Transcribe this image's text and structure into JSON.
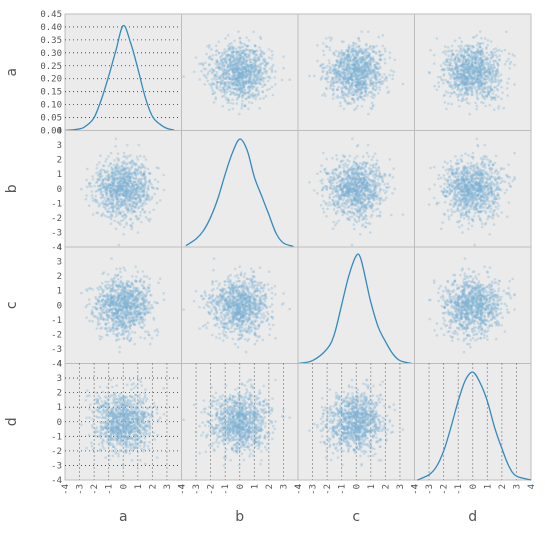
{
  "chart_data": {
    "type": "scatter",
    "subtype": "scatter-matrix",
    "variables": [
      "a",
      "b",
      "c",
      "d"
    ],
    "diagonal": "kde",
    "grid": true,
    "axis_ticks": {
      "a": {
        "range": [
          -4,
          4
        ],
        "x_ticks": [
          "-4",
          "-3",
          "-2",
          "-1",
          "0",
          "1",
          "2",
          "3",
          "4"
        ],
        "density_ticks": [
          "0.00",
          "0.05",
          "0.10",
          "0.15",
          "0.20",
          "0.25",
          "0.30",
          "0.35",
          "0.40",
          "0.45"
        ]
      },
      "b": {
        "range": [
          -4,
          4
        ],
        "ticks": [
          "-4",
          "-3",
          "-2",
          "-1",
          "0",
          "1",
          "2",
          "3",
          "4"
        ]
      },
      "c": {
        "range": [
          -4,
          4
        ],
        "ticks": [
          "-4",
          "-3",
          "-2",
          "-1",
          "0",
          "1",
          "2",
          "3",
          "4"
        ]
      },
      "d": {
        "range": [
          -4,
          4
        ],
        "ticks": [
          "-4",
          "-3",
          "-2",
          "-1",
          "0",
          "1",
          "2",
          "3",
          "4"
        ]
      }
    },
    "kde_curves": {
      "a": {
        "x": [
          -4,
          -3,
          -2.5,
          -2,
          -1.5,
          -1,
          -0.5,
          0,
          0.5,
          1,
          1.5,
          2,
          2.5,
          3,
          3.5
        ],
        "y": [
          0.0,
          0.006,
          0.02,
          0.05,
          0.12,
          0.21,
          0.31,
          0.405,
          0.34,
          0.24,
          0.13,
          0.055,
          0.025,
          0.008,
          0.002
        ]
      },
      "b": {
        "x": [
          -3.7,
          -3,
          -2.5,
          -2,
          -1.5,
          -1,
          -0.5,
          0,
          0.5,
          1,
          1.5,
          2,
          2.5,
          3,
          3.7
        ],
        "y": [
          0.005,
          0.03,
          0.06,
          0.11,
          0.18,
          0.27,
          0.35,
          0.4,
          0.36,
          0.26,
          0.19,
          0.12,
          0.05,
          0.015,
          0.002
        ]
      },
      "c": {
        "x": [
          -4,
          -3,
          -2,
          -1.5,
          -1,
          -0.5,
          0,
          0.3,
          0.7,
          1,
          1.5,
          2,
          2.5,
          3,
          3.8
        ],
        "y": [
          0.0,
          0.012,
          0.06,
          0.12,
          0.24,
          0.36,
          0.44,
          0.43,
          0.33,
          0.25,
          0.15,
          0.09,
          0.04,
          0.012,
          0.0
        ]
      },
      "d": {
        "x": [
          -3.8,
          -3,
          -2.5,
          -2,
          -1.5,
          -1,
          -0.5,
          0,
          0.5,
          1,
          1.5,
          2,
          2.5,
          3,
          4
        ],
        "y": [
          0.0,
          0.02,
          0.05,
          0.11,
          0.2,
          0.3,
          0.38,
          0.41,
          0.37,
          0.3,
          0.2,
          0.12,
          0.05,
          0.015,
          0.0
        ]
      }
    },
    "scatter_summary": {
      "distribution": "standard normal, independent",
      "points_per_panel": 1000,
      "spread_sd": 1.0
    },
    "colors": {
      "point": "#7fb3d5",
      "kde_line": "#348abd",
      "panel_background": "#ebebeb",
      "panel_border": "#bcbcbc",
      "grid_dots": "#333333"
    }
  }
}
